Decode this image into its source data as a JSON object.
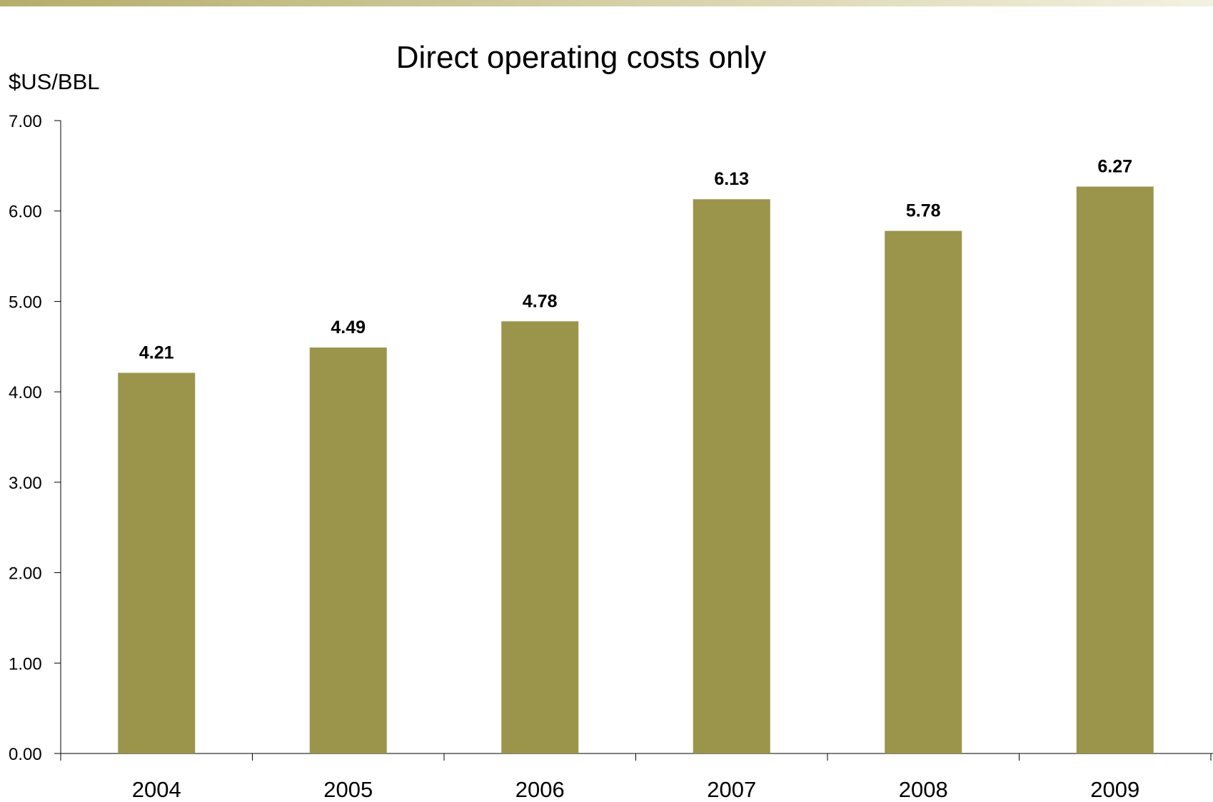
{
  "colors": {
    "bar": "#9b944b",
    "axis": "#000000",
    "top_bar_start": "#b5ad6a",
    "top_bar_end": "#f3f1e0"
  },
  "chart_data": {
    "type": "bar",
    "title": "Direct operating costs only",
    "ylabel": "$US/BBL",
    "xlabel": "",
    "categories": [
      "2004",
      "2005",
      "2006",
      "2007",
      "2008",
      "2009"
    ],
    "values": [
      4.21,
      4.49,
      4.78,
      6.13,
      5.78,
      6.27
    ],
    "data_labels": [
      "4.21",
      "4.49",
      "4.78",
      "6.13",
      "5.78",
      "6.27"
    ],
    "ylim": [
      0,
      7
    ],
    "yticks": [
      "0.00",
      "1.00",
      "2.00",
      "3.00",
      "4.00",
      "5.00",
      "6.00",
      "7.00"
    ],
    "grid": false,
    "legend": "none"
  }
}
